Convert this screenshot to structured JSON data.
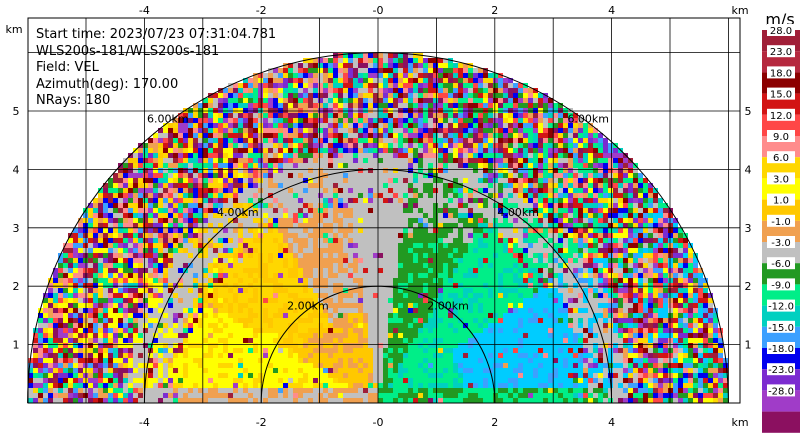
{
  "info": {
    "start_time": "Start time: 2023/07/23 07:31:04.781",
    "instrument": "WLS200s-181/WLS200s-181",
    "field": "Field: VEL",
    "azimuth": "Azimuth(deg): 170.00",
    "nrays": "NRays: 180"
  },
  "chart_data": {
    "type": "heatmap",
    "projection": "RHI-style polar (half disc), range rings in km",
    "xlim": [
      -5.86,
      6.0
    ],
    "ylim": [
      0,
      6.0
    ],
    "x_ticks": [
      -4,
      -2,
      0,
      2,
      4
    ],
    "y_ticks": [
      1,
      2,
      3,
      4,
      5
    ],
    "x_tick_labels": [
      "-4",
      "-2",
      "-0",
      "2",
      "4"
    ],
    "y_tick_labels": [
      "1",
      "2",
      "3",
      "4",
      "5"
    ],
    "axis_unit_label": "km",
    "grid": true,
    "range_rings_km": [
      2.0,
      4.0,
      6.0
    ],
    "ring_labels": [
      "2.00km",
      "4.00km",
      "6.00km"
    ],
    "colorbar": {
      "title": "m/s",
      "labels": [
        "28.0",
        "23.0",
        "18.0",
        "15.0",
        "12.0",
        "9.0",
        "6.0",
        "3.0",
        "1.0",
        "-1.0",
        "-3.0",
        "-6.0",
        "-9.0",
        "-12.0",
        "-15.0",
        "-18.0",
        "-23.0",
        "-28.0"
      ],
      "colors": [
        "#a01f38",
        "#b5283e",
        "#8c0000",
        "#d21414",
        "#ff4646",
        "#ff8c8c",
        "#ffd700",
        "#ffff00",
        "#ffc800",
        "#f0a050",
        "#c0c0c0",
        "#229922",
        "#00ee88",
        "#00d0c0",
        "#3ca0ff",
        "#0000ee",
        "#7b2cd0",
        "#a03cc8",
        "#8b1060"
      ]
    },
    "description_values": {
      "left_half_dominant_velocity_ms": [
        1.0,
        9.0
      ],
      "right_half_dominant_velocity_ms": [
        -12.0,
        -1.0
      ],
      "near_vertical_band_ms": [
        -1.0,
        1.0
      ]
    }
  }
}
